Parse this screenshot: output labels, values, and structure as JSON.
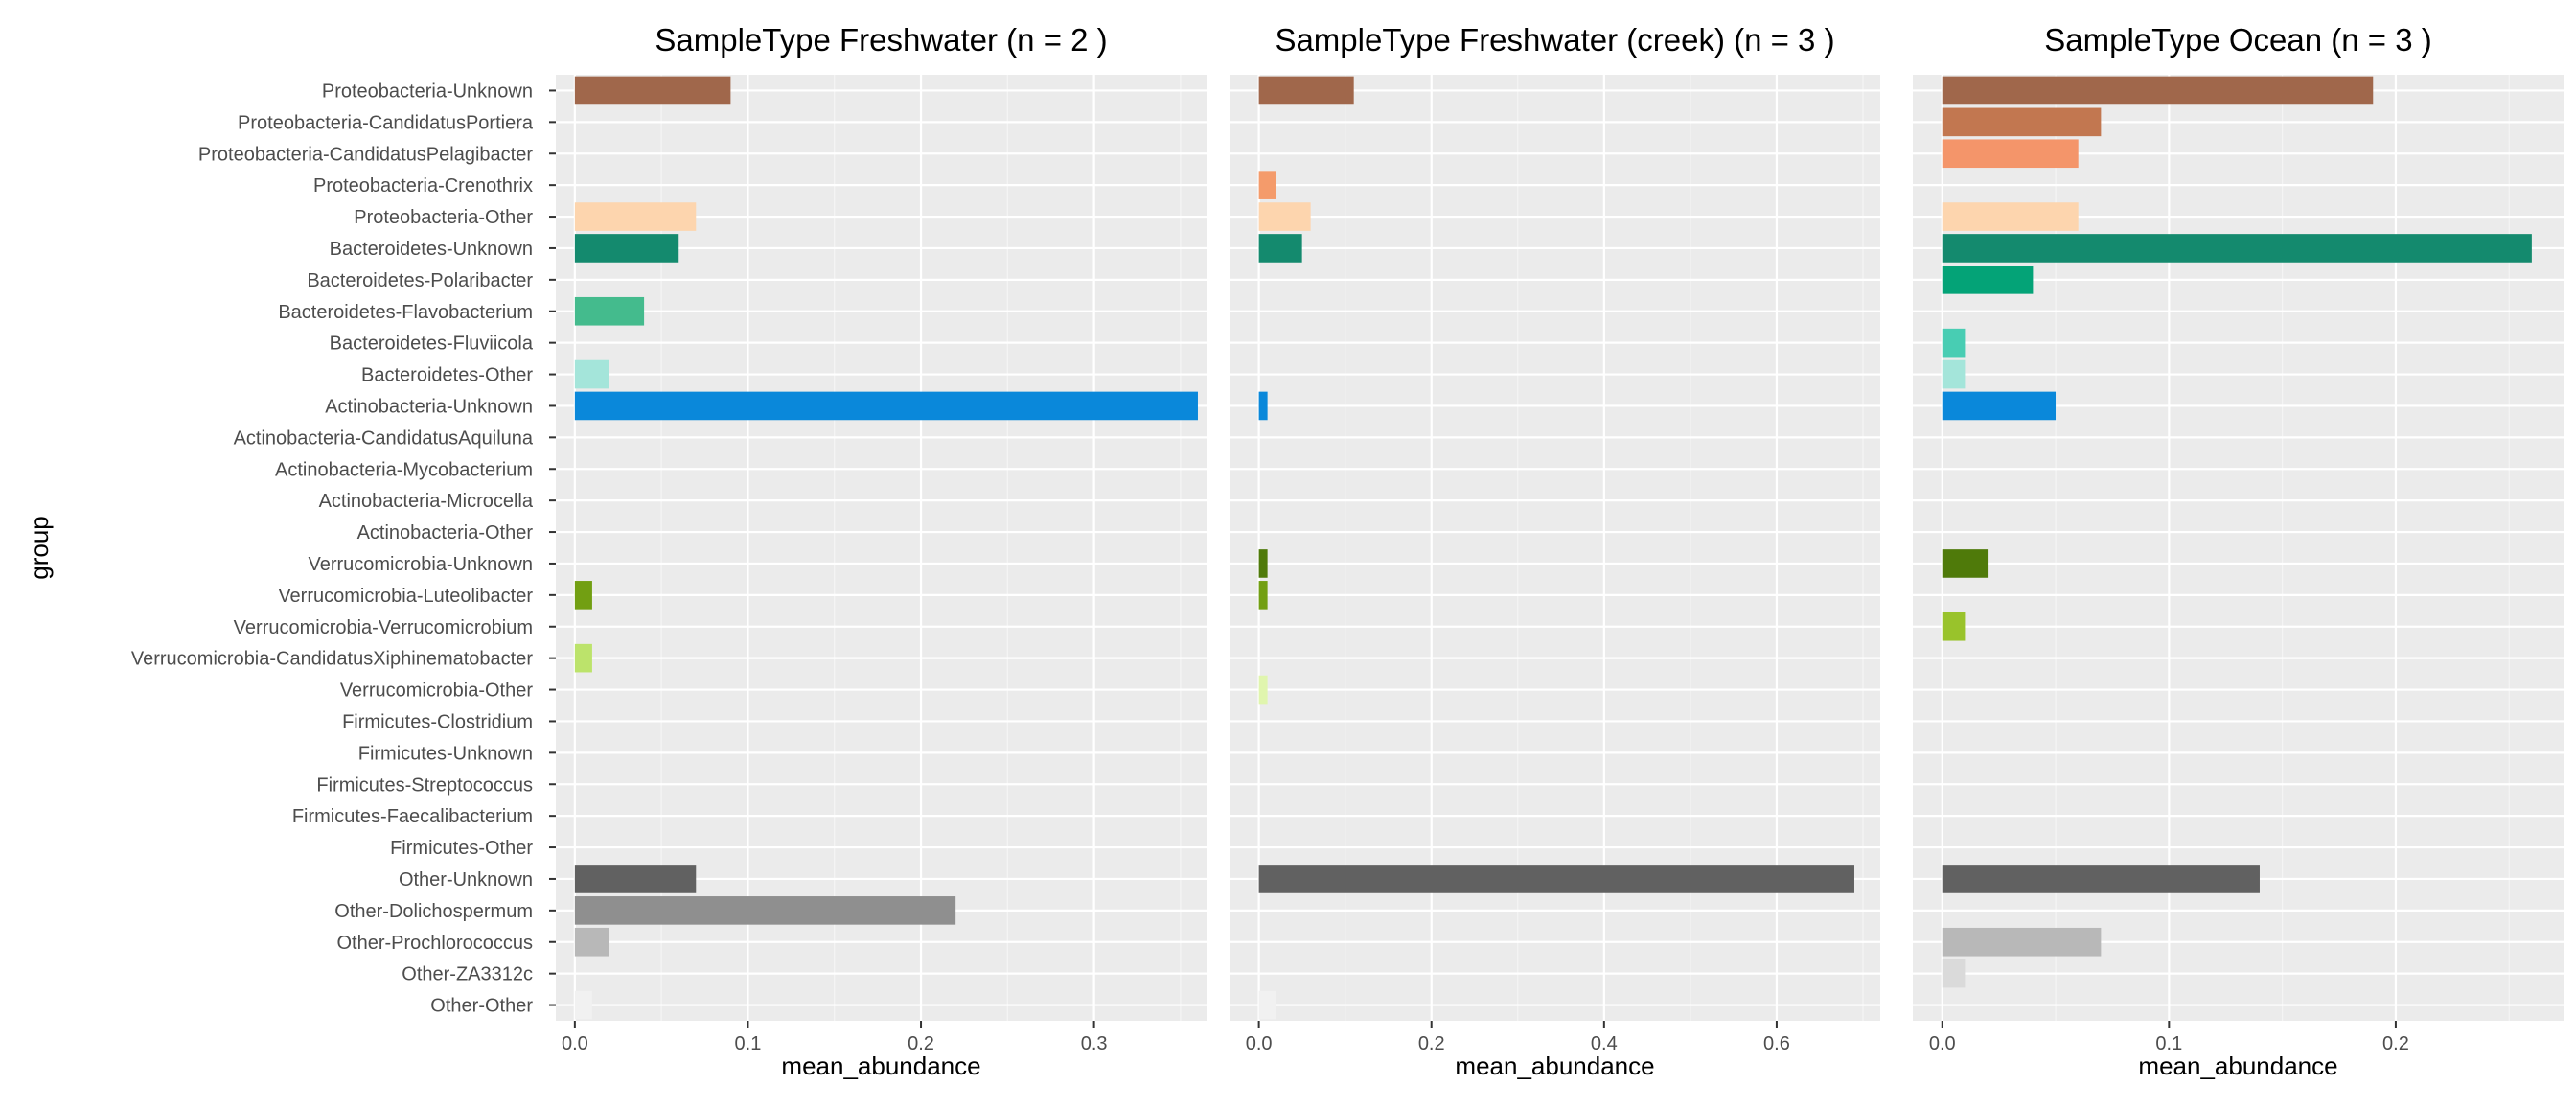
{
  "chart_data": {
    "type": "bar",
    "orientation": "horizontal",
    "ylabel": "group",
    "xlabel": "mean_abundance",
    "categories": [
      "Proteobacteria-Unknown",
      "Proteobacteria-CandidatusPortiera",
      "Proteobacteria-CandidatusPelagibacter",
      "Proteobacteria-Crenothrix",
      "Proteobacteria-Other",
      "Bacteroidetes-Unknown",
      "Bacteroidetes-Polaribacter",
      "Bacteroidetes-Flavobacterium",
      "Bacteroidetes-Fluviicola",
      "Bacteroidetes-Other",
      "Actinobacteria-Unknown",
      "Actinobacteria-CandidatusAquiluna",
      "Actinobacteria-Mycobacterium",
      "Actinobacteria-Microcella",
      "Actinobacteria-Other",
      "Verrucomicrobia-Unknown",
      "Verrucomicrobia-Luteolibacter",
      "Verrucomicrobia-Verrucomicrobium",
      "Verrucomicrobia-CandidatusXiphinematobacter",
      "Verrucomicrobia-Other",
      "Firmicutes-Clostridium",
      "Firmicutes-Unknown",
      "Firmicutes-Streptococcus",
      "Firmicutes-Faecalibacterium",
      "Firmicutes-Other",
      "Other-Unknown",
      "Other-Dolichospermum",
      "Other-Prochlorococcus",
      "Other-ZA3312c",
      "Other-Other"
    ],
    "colors": [
      "#A0674B",
      "#C27750",
      "#F4956A",
      "#F49B6B",
      "#FDD5AE",
      "#148A6E",
      "#04A377",
      "#44BB8D",
      "#48CDB3",
      "#A4E5DA",
      "#0A88DA",
      "#3D9FE2",
      "#6BB7EA",
      "#A0D2F2",
      "#CFE8F8",
      "#4F7A0A",
      "#729F12",
      "#99C32B",
      "#BCE36B",
      "#E0F5AE",
      "#C49A2E",
      "#D4AE50",
      "#E0C373",
      "#ECD89B",
      "#F6EDCF",
      "#616161",
      "#8F8F8F",
      "#B8B8B8",
      "#DADADA",
      "#F1F1F1"
    ],
    "grid": true,
    "panels": [
      {
        "title": "SampleType Freshwater (n = 2 )",
        "xlim": [
          -0.011,
          0.365
        ],
        "xticks": [
          0.0,
          0.1,
          0.2,
          0.3
        ],
        "xtick_labels": [
          "0.0",
          "0.1",
          "0.2",
          "0.3"
        ],
        "values": [
          0.09,
          0,
          0,
          0,
          0.07,
          0.06,
          0,
          0.04,
          0,
          0.02,
          0.36,
          0,
          0,
          0,
          0,
          0,
          0.01,
          0,
          0.01,
          0,
          0,
          0,
          0,
          0,
          0,
          0.07,
          0.22,
          0.02,
          0,
          0.01
        ]
      },
      {
        "title": "SampleType Freshwater (creek) (n = 3 )",
        "xlim": [
          -0.034,
          0.72
        ],
        "xticks": [
          0.0,
          0.2,
          0.4,
          0.6
        ],
        "xtick_labels": [
          "0.0",
          "0.2",
          "0.4",
          "0.6"
        ],
        "values": [
          0.11,
          0,
          0,
          0.02,
          0.06,
          0.05,
          0,
          0,
          0,
          0,
          0.01,
          0,
          0,
          0,
          0,
          0.01,
          0.01,
          0,
          0,
          0.01,
          0,
          0,
          0,
          0,
          0,
          0.69,
          0,
          0,
          0,
          0.02
        ]
      },
      {
        "title": "SampleType Ocean (n = 3 )",
        "xlim": [
          -0.013,
          0.274
        ],
        "xticks": [
          0.0,
          0.1,
          0.2
        ],
        "xtick_labels": [
          "0.0",
          "0.1",
          "0.2"
        ],
        "values": [
          0.19,
          0.07,
          0.06,
          0,
          0.06,
          0.26,
          0.04,
          0,
          0.01,
          0.01,
          0.05,
          0,
          0,
          0,
          0,
          0.02,
          0,
          0.01,
          0,
          0,
          0,
          0,
          0,
          0,
          0,
          0.14,
          0,
          0.07,
          0.01,
          0
        ]
      }
    ]
  }
}
